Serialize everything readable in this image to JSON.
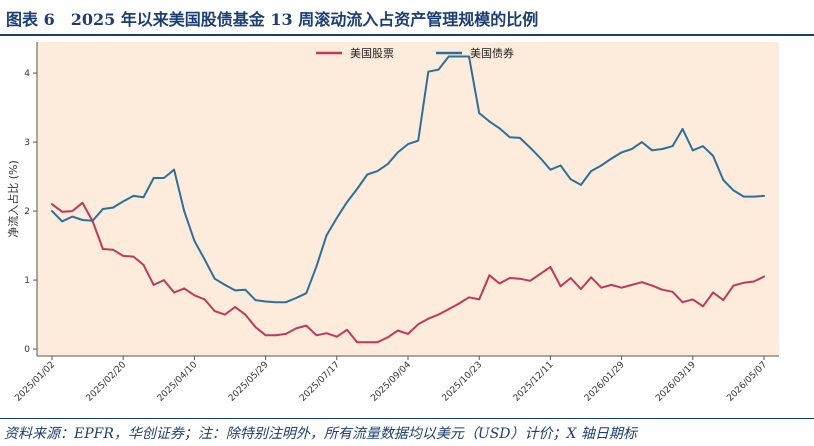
{
  "header": {
    "title": "图表 6　2025 年以来美国股债基金 13 周滚动流入占资产管理规模的比例"
  },
  "footer": {
    "source": "资料来源：EPFR，华创证券；注：除特别注明外，所有流量数据均以美元（USD）计价；X 轴日期标"
  },
  "colors": {
    "plot_background": "#fdebdc",
    "equity": "#c0395b",
    "bond": "#2e6f99"
  },
  "chart_data": {
    "type": "line",
    "title": "",
    "xlabel": "",
    "ylabel": "净流入占比 (%)",
    "ylim": [
      -0.1,
      4.45
    ],
    "yticks": [
      0,
      1,
      2,
      3,
      4
    ],
    "grid": false,
    "legend_position": "top-center",
    "x": [
      "2025/01/02",
      "2025/01/09",
      "2025/01/16",
      "2025/01/23",
      "2025/01/30",
      "2025/02/06",
      "2025/02/13",
      "2025/02/20",
      "2025/02/27",
      "2025/03/06",
      "2025/03/13",
      "2025/03/20",
      "2025/03/27",
      "2025/04/03",
      "2025/04/10",
      "2025/04/17",
      "2025/04/24",
      "2025/05/01",
      "2025/05/08",
      "2025/05/15",
      "2025/05/22",
      "2025/05/29",
      "2025/06/05",
      "2025/06/12",
      "2025/06/19",
      "2025/06/26",
      "2025/07/03",
      "2025/07/10",
      "2025/07/17",
      "2025/07/24",
      "2025/07/31",
      "2025/08/07",
      "2025/08/14",
      "2025/08/21",
      "2025/08/28",
      "2025/09/04",
      "2025/09/11",
      "2025/09/18",
      "2025/09/25",
      "2025/10/02",
      "2025/10/09",
      "2025/10/16",
      "2025/10/23",
      "2025/10/30",
      "2025/11/06",
      "2025/11/13",
      "2025/11/20",
      "2025/11/27",
      "2025/12/04",
      "2025/12/11",
      "2025/12/18",
      "2025/12/25",
      "2026/01/01",
      "2026/01/08",
      "2026/01/15",
      "2026/01/22",
      "2026/01/29",
      "2026/02/05",
      "2026/02/12",
      "2026/02/19",
      "2026/02/26",
      "2026/03/05",
      "2026/03/12",
      "2026/03/19",
      "2026/03/26",
      "2026/04/02",
      "2026/04/09",
      "2026/04/16",
      "2026/04/23",
      "2026/04/30",
      "2026/05/07"
    ],
    "xtick_labels": [
      "2025/01/02",
      "2025/02/20",
      "2025/04/10",
      "2025/05/29",
      "2025/07/17",
      "2025/09/04",
      "2025/10/23",
      "2025/12/11",
      "2026/01/29",
      "2026/03/19",
      "2026/05/07"
    ],
    "series": [
      {
        "name": "美国股票",
        "color": "#c0395b",
        "values": [
          2.1,
          1.99,
          2.0,
          2.12,
          1.85,
          1.45,
          1.44,
          1.35,
          1.34,
          1.22,
          0.93,
          1.0,
          0.82,
          0.88,
          0.78,
          0.72,
          0.55,
          0.5,
          0.61,
          0.5,
          0.32,
          0.2,
          0.2,
          0.22,
          0.3,
          0.34,
          0.2,
          0.23,
          0.18,
          0.28,
          0.1,
          0.1,
          0.1,
          0.17,
          0.27,
          0.22,
          0.36,
          0.44,
          0.5,
          0.58,
          0.66,
          0.75,
          0.72,
          1.07,
          0.95,
          1.03,
          1.02,
          0.99,
          1.09,
          1.19,
          0.91,
          1.03,
          0.87,
          1.04,
          0.89,
          0.93,
          0.89,
          0.93,
          0.97,
          0.92,
          0.86,
          0.83,
          0.68,
          0.72,
          0.62,
          0.82,
          0.71,
          0.92,
          0.96,
          0.98,
          1.05
        ]
      },
      {
        "name": "美国债券",
        "color": "#2e6f99",
        "values": [
          2.0,
          1.85,
          1.92,
          1.87,
          1.86,
          2.03,
          2.05,
          2.14,
          2.22,
          2.2,
          2.48,
          2.48,
          2.6,
          2.0,
          1.57,
          1.3,
          1.02,
          0.93,
          0.85,
          0.86,
          0.71,
          0.69,
          0.68,
          0.68,
          0.74,
          0.81,
          1.2,
          1.65,
          1.9,
          2.13,
          2.32,
          2.53,
          2.58,
          2.68,
          2.85,
          2.97,
          3.02,
          4.02,
          4.05,
          4.24,
          4.24,
          4.24,
          3.42,
          3.3,
          3.2,
          3.07,
          3.06,
          2.92,
          2.77,
          2.6,
          2.66,
          2.46,
          2.38,
          2.58,
          2.66,
          2.76,
          2.85,
          2.9,
          3.0,
          2.88,
          2.9,
          2.94,
          3.19,
          2.88,
          2.94,
          2.8,
          2.45,
          2.3,
          2.21,
          2.21,
          2.22
        ]
      }
    ]
  }
}
